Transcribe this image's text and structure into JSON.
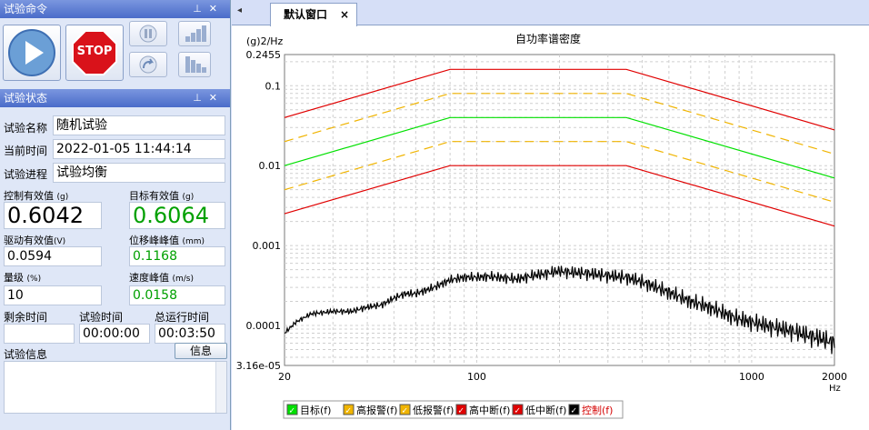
{
  "command_panel": {
    "title": "试验命令",
    "stop_label": "STOP"
  },
  "status_panel": {
    "title": "试验状态",
    "name_label": "试验名称",
    "name_value": "随机试验",
    "time_label": "当前时间",
    "time_value": "2022-01-05 11:44:14",
    "progress_label": "试验进程",
    "progress_value": "试验均衡",
    "ctrl_rms_label": "控制有效值",
    "ctrl_rms_unit": "(g)",
    "ctrl_rms_value": "0.6042",
    "target_rms_label": "目标有效值",
    "target_rms_unit": "(g)",
    "target_rms_value": "0.6064",
    "drive_rms_label": "驱动有效值",
    "drive_rms_unit": "(V)",
    "drive_rms_value": "0.0594",
    "disp_peak_label": "位移峰峰值",
    "disp_peak_unit": "(mm)",
    "disp_peak_value": "0.1168",
    "level_label": "量级",
    "level_unit": "(%)",
    "level_value": "10",
    "vel_peak_label": "速度峰值",
    "vel_peak_unit": "(m/s)",
    "vel_peak_value": "0.0158",
    "remaining_label": "剩余时间",
    "remaining_value": "",
    "test_time_label": "试验时间",
    "test_time_value": "00:00:00",
    "total_time_label": "总运行时间",
    "total_time_value": "00:03:50",
    "info_label": "试验信息",
    "info_button": "信息"
  },
  "tab": {
    "label": "默认窗口",
    "close": "×"
  },
  "chart_data": {
    "type": "line",
    "title": "自功率谱密度",
    "ylabel": "(g)2/Hz",
    "xlabel": "Hz",
    "xscale": "log",
    "yscale": "log",
    "xlim": [
      20,
      2000
    ],
    "ylim": [
      3.16e-05,
      0.2455
    ],
    "x_ticks": [
      "20",
      "100",
      "1000",
      "2000"
    ],
    "y_ticks": [
      "3.16e-05",
      "0.0001",
      "0.001",
      "0.01",
      "0.1",
      "0.2455"
    ],
    "grid": true,
    "legend_placement": "bottom",
    "series": [
      {
        "name": "目标(f)",
        "color": "#00e000",
        "style": "solid",
        "x": [
          20,
          80,
          350,
          2000
        ],
        "y": [
          0.01,
          0.04,
          0.04,
          0.007
        ]
      },
      {
        "name": "高报警(f)",
        "color": "#f0b400",
        "style": "dashed",
        "x": [
          20,
          80,
          350,
          2000
        ],
        "y": [
          0.02,
          0.08,
          0.08,
          0.014
        ]
      },
      {
        "name": "低报警(f)",
        "color": "#f0b400",
        "style": "dashed",
        "x": [
          20,
          80,
          350,
          2000
        ],
        "y": [
          0.005,
          0.02,
          0.02,
          0.0035
        ]
      },
      {
        "name": "高中断(f)",
        "color": "#e00000",
        "style": "solid",
        "x": [
          20,
          80,
          350,
          2000
        ],
        "y": [
          0.04,
          0.16,
          0.16,
          0.028
        ]
      },
      {
        "name": "低中断(f)",
        "color": "#e00000",
        "style": "solid",
        "x": [
          20,
          80,
          350,
          2000
        ],
        "y": [
          0.0025,
          0.01,
          0.01,
          0.00175
        ]
      },
      {
        "name": "控制(f)",
        "color": "#000000",
        "style": "solid",
        "x": [
          20,
          22,
          25,
          30,
          35,
          40,
          45,
          50,
          55,
          60,
          70,
          80,
          90,
          100,
          110,
          120,
          140,
          160,
          180,
          200,
          220,
          250,
          280,
          300,
          350,
          400,
          450,
          500,
          600,
          700,
          800,
          900,
          1000,
          1200,
          1400,
          1600,
          1800,
          2000
        ],
        "y": [
          8e-05,
          0.00011,
          0.00014,
          0.00015,
          0.00015,
          0.00017,
          0.00018,
          0.00022,
          0.00025,
          0.00025,
          0.0003,
          0.00037,
          0.0004,
          0.0004,
          0.00041,
          0.0004,
          0.00038,
          0.00042,
          0.00045,
          0.00048,
          0.00046,
          0.00045,
          0.00043,
          0.00042,
          0.0004,
          0.00035,
          0.0003,
          0.00026,
          0.0002,
          0.00017,
          0.00014,
          0.00012,
          0.00011,
          9.5e-05,
          8.5e-05,
          7.5e-05,
          6.8e-05,
          6e-05
        ]
      }
    ]
  }
}
